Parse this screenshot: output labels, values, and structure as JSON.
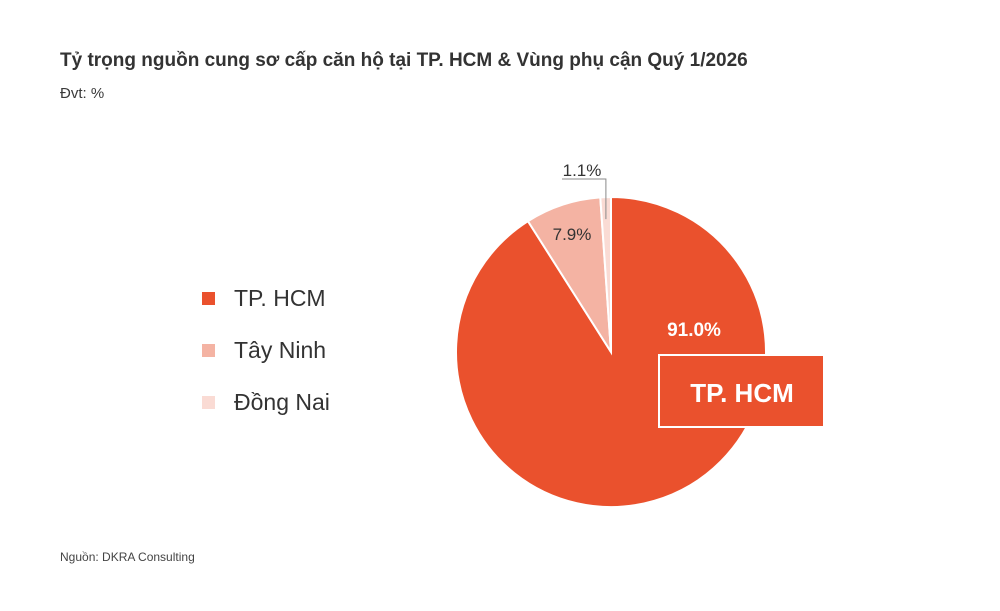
{
  "title": "Tỷ trọng nguồn cung sơ cấp căn hộ tại TP. HCM & Vùng phụ cận Quý 1/2026",
  "unit": "Đvt: %",
  "source": "Nguồn: DKRA Consulting",
  "colors": {
    "tp_hcm": "#ea512d",
    "tay_ninh": "#f4b3a3",
    "dong_nai": "#fadbd4"
  },
  "chart_data": {
    "type": "pie",
    "title": "Tỷ trọng nguồn cung sơ cấp căn hộ tại TP. HCM & Vùng phụ cận Quý 1/2026",
    "unit": "%",
    "legend_position": "left",
    "slices": [
      {
        "name": "TP. HCM",
        "value": 91.0,
        "label": "91.0%",
        "color": "#ea512d"
      },
      {
        "name": "Tây Ninh",
        "value": 7.9,
        "label": "7.9%",
        "color": "#f4b3a3"
      },
      {
        "name": "Đồng Nai",
        "value": 1.1,
        "label": "1.1%",
        "color": "#fadbd4"
      }
    ],
    "callout": "TP. HCM"
  }
}
